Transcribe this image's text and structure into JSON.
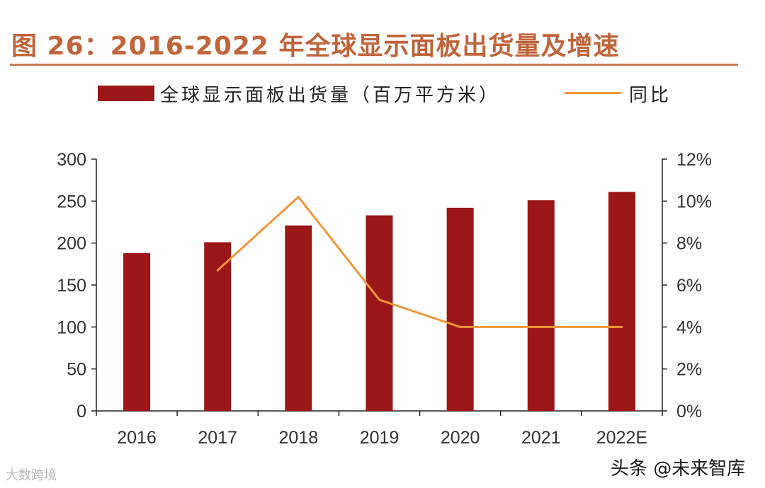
{
  "title": "图 26：2016-2022 年全球显示面板出货量及增速",
  "legend": {
    "bar_label": "全球显示面板出货量（百万平方米）",
    "line_label": "同比"
  },
  "colors": {
    "bar": "#9b1616",
    "line": "#f0963a",
    "title": "#c0643a",
    "axis": "#222222"
  },
  "watermarks": {
    "left": "大数跨境",
    "right": "头条 @未来智库"
  },
  "chart_data": {
    "type": "bar",
    "title": "2016-2022 年全球显示面板出货量及增速",
    "categories": [
      "2016",
      "2017",
      "2018",
      "2019",
      "2020",
      "2021",
      "2022E"
    ],
    "series": [
      {
        "name": "全球显示面板出货量（百万平方米）",
        "type": "bar",
        "axis": "left",
        "values": [
          188,
          201,
          221,
          233,
          242,
          251,
          261
        ]
      },
      {
        "name": "同比",
        "type": "line",
        "axis": "right",
        "values": [
          null,
          6.7,
          10.2,
          5.3,
          4.0,
          4.0,
          4.0
        ]
      }
    ],
    "y_left": {
      "min": 0,
      "max": 300,
      "ticks": [
        "0",
        "50",
        "100",
        "150",
        "200",
        "250",
        "300"
      ]
    },
    "y_right": {
      "min": 0,
      "max": 12,
      "ticks": [
        "0%",
        "2%",
        "4%",
        "6%",
        "8%",
        "10%",
        "12%"
      ]
    },
    "xlabel": "",
    "ylabel": "",
    "legend_position": "top"
  }
}
